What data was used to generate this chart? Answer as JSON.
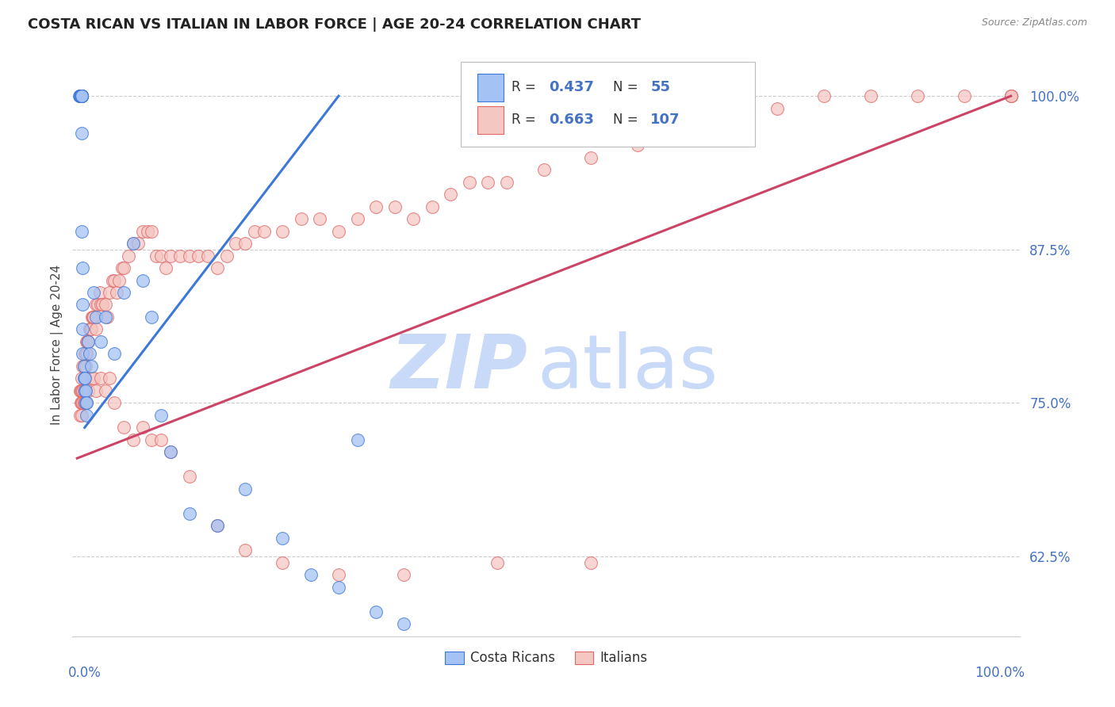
{
  "title": "COSTA RICAN VS ITALIAN IN LABOR FORCE | AGE 20-24 CORRELATION CHART",
  "source": "Source: ZipAtlas.com",
  "ylabel": "In Labor Force | Age 20-24",
  "ytick_labels": [
    "62.5%",
    "75.0%",
    "87.5%",
    "100.0%"
  ],
  "ytick_values": [
    0.625,
    0.75,
    0.875,
    1.0
  ],
  "legend_label1": "Costa Ricans",
  "legend_label2": "Italians",
  "R_blue": 0.437,
  "N_blue": 55,
  "R_pink": 0.663,
  "N_pink": 107,
  "blue_fill": "#a4c2f4",
  "pink_fill": "#f4c7c3",
  "blue_edge": "#3c78d8",
  "pink_edge": "#e06666",
  "blue_line": "#3c78d8",
  "pink_line": "#cc4466",
  "text_color": "#444444",
  "axis_color": "#4472c4",
  "grid_color": "#cccccc",
  "wm_zip_color": "#c9daf8",
  "wm_atlas_color": "#c9daf8",
  "xlim": [
    -0.005,
    1.01
  ],
  "ylim": [
    0.56,
    1.035
  ],
  "blue_line_x": [
    0.008,
    0.28
  ],
  "blue_line_y": [
    0.73,
    1.0
  ],
  "pink_line_x": [
    0.0,
    1.0
  ],
  "pink_line_y": [
    0.705,
    1.0
  ],
  "blue_x": [
    0.002,
    0.003,
    0.003,
    0.003,
    0.003,
    0.004,
    0.004,
    0.004,
    0.004,
    0.004,
    0.005,
    0.005,
    0.005,
    0.005,
    0.005,
    0.005,
    0.005,
    0.005,
    0.005,
    0.005,
    0.006,
    0.006,
    0.006,
    0.006,
    0.007,
    0.007,
    0.008,
    0.008,
    0.009,
    0.009,
    0.01,
    0.01,
    0.012,
    0.013,
    0.015,
    0.018,
    0.02,
    0.025,
    0.03,
    0.04,
    0.05,
    0.06,
    0.07,
    0.08,
    0.09,
    0.1,
    0.12,
    0.15,
    0.18,
    0.22,
    0.25,
    0.28,
    0.3,
    0.32,
    0.35
  ],
  "blue_y": [
    1.0,
    1.0,
    1.0,
    1.0,
    1.0,
    1.0,
    1.0,
    1.0,
    1.0,
    1.0,
    1.0,
    1.0,
    1.0,
    1.0,
    1.0,
    1.0,
    1.0,
    1.0,
    0.97,
    0.89,
    0.86,
    0.83,
    0.81,
    0.79,
    0.78,
    0.77,
    0.77,
    0.76,
    0.76,
    0.75,
    0.75,
    0.74,
    0.8,
    0.79,
    0.78,
    0.84,
    0.82,
    0.8,
    0.82,
    0.79,
    0.84,
    0.88,
    0.85,
    0.82,
    0.74,
    0.71,
    0.66,
    0.65,
    0.68,
    0.64,
    0.61,
    0.6,
    0.72,
    0.58,
    0.57
  ],
  "pink_x": [
    0.003,
    0.003,
    0.004,
    0.004,
    0.005,
    0.005,
    0.005,
    0.006,
    0.006,
    0.007,
    0.007,
    0.008,
    0.008,
    0.009,
    0.009,
    0.01,
    0.01,
    0.011,
    0.012,
    0.013,
    0.014,
    0.015,
    0.016,
    0.017,
    0.018,
    0.02,
    0.02,
    0.022,
    0.024,
    0.025,
    0.027,
    0.03,
    0.032,
    0.035,
    0.038,
    0.04,
    0.042,
    0.045,
    0.048,
    0.05,
    0.055,
    0.06,
    0.065,
    0.07,
    0.075,
    0.08,
    0.085,
    0.09,
    0.095,
    0.1,
    0.11,
    0.12,
    0.13,
    0.14,
    0.15,
    0.16,
    0.17,
    0.18,
    0.19,
    0.2,
    0.22,
    0.24,
    0.26,
    0.28,
    0.3,
    0.32,
    0.34,
    0.36,
    0.38,
    0.4,
    0.42,
    0.44,
    0.46,
    0.5,
    0.55,
    0.6,
    0.65,
    0.7,
    0.75,
    0.8,
    0.85,
    0.9,
    0.95,
    1.0,
    1.0,
    1.0,
    0.005,
    0.006,
    0.007,
    0.008,
    0.01,
    0.012,
    0.015,
    0.018,
    0.02,
    0.025,
    0.03,
    0.035,
    0.04,
    0.05,
    0.06,
    0.07,
    0.08,
    0.09,
    0.1,
    0.12,
    0.15,
    0.18,
    0.22,
    0.28,
    0.35,
    0.45,
    0.55
  ],
  "pink_y": [
    0.76,
    0.74,
    0.76,
    0.75,
    0.77,
    0.76,
    0.74,
    0.78,
    0.76,
    0.78,
    0.76,
    0.79,
    0.77,
    0.79,
    0.78,
    0.8,
    0.79,
    0.8,
    0.8,
    0.81,
    0.81,
    0.81,
    0.82,
    0.82,
    0.82,
    0.83,
    0.81,
    0.83,
    0.84,
    0.83,
    0.83,
    0.83,
    0.82,
    0.84,
    0.85,
    0.85,
    0.84,
    0.85,
    0.86,
    0.86,
    0.87,
    0.88,
    0.88,
    0.89,
    0.89,
    0.89,
    0.87,
    0.87,
    0.86,
    0.87,
    0.87,
    0.87,
    0.87,
    0.87,
    0.86,
    0.87,
    0.88,
    0.88,
    0.89,
    0.89,
    0.89,
    0.9,
    0.9,
    0.89,
    0.9,
    0.91,
    0.91,
    0.9,
    0.91,
    0.92,
    0.93,
    0.93,
    0.93,
    0.94,
    0.95,
    0.96,
    0.97,
    0.98,
    0.99,
    1.0,
    1.0,
    1.0,
    1.0,
    1.0,
    1.0,
    1.0,
    0.75,
    0.75,
    0.75,
    0.75,
    0.75,
    0.76,
    0.77,
    0.77,
    0.76,
    0.77,
    0.76,
    0.77,
    0.75,
    0.73,
    0.72,
    0.73,
    0.72,
    0.72,
    0.71,
    0.69,
    0.65,
    0.63,
    0.62,
    0.61,
    0.61,
    0.62,
    0.62
  ]
}
